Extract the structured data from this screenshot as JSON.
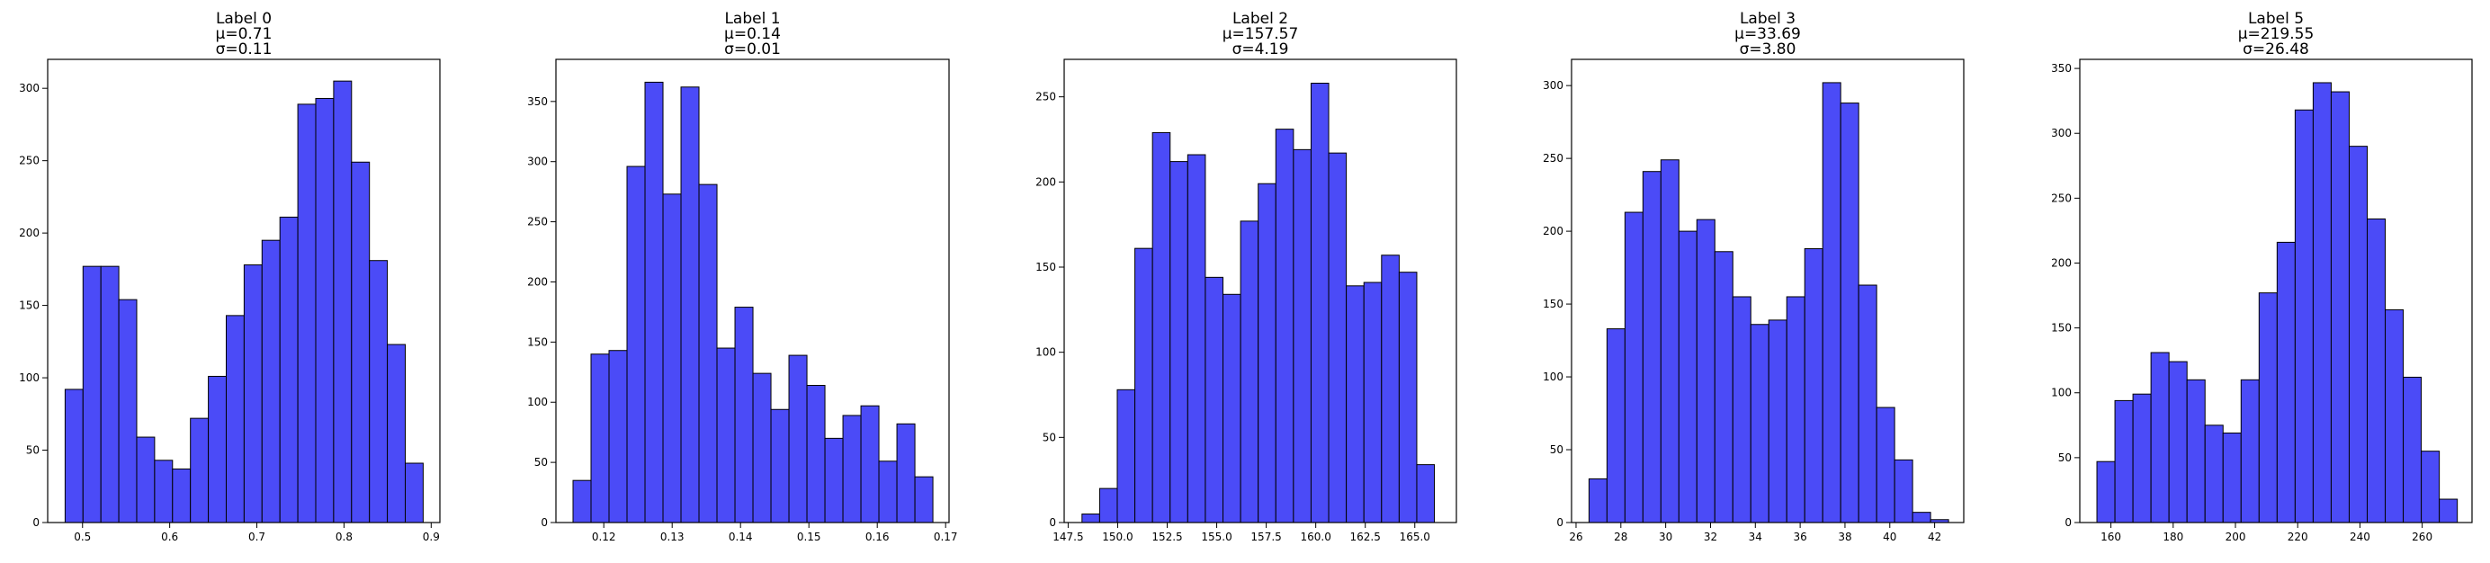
{
  "chart_data": [
    {
      "type": "bar",
      "title_lines": [
        "Label 0",
        "μ=0.71",
        "σ=0.11"
      ],
      "bar_color": "#4b4bf7",
      "bin_start": 0.48,
      "bin_width": 0.02054,
      "values": [
        92,
        177,
        177,
        154,
        59,
        43,
        37,
        72,
        101,
        143,
        178,
        195,
        211,
        289,
        293,
        305,
        249,
        181,
        123,
        41
      ],
      "xlim": [
        0.46,
        0.91
      ],
      "ylim": [
        0,
        320
      ],
      "xticks": [
        0.5,
        0.6,
        0.7,
        0.8,
        0.9
      ],
      "xtick_labels": [
        "0.5",
        "0.6",
        "0.7",
        "0.8",
        "0.9"
      ],
      "yticks": [
        0,
        50,
        100,
        150,
        200,
        250,
        300
      ],
      "ytick_labels": [
        "0",
        "50",
        "100",
        "150",
        "200",
        "250",
        "300"
      ]
    },
    {
      "type": "bar",
      "title_lines": [
        "Label 1",
        "μ=0.14",
        "σ=0.01"
      ],
      "bar_color": "#4b4bf7",
      "bin_start": 0.1155,
      "bin_width": 0.002632,
      "values": [
        35,
        140,
        143,
        296,
        366,
        273,
        362,
        281,
        145,
        179,
        124,
        94,
        139,
        114,
        70,
        89,
        97,
        51,
        82,
        38
      ],
      "xlim": [
        0.113,
        0.1705
      ],
      "ylim": [
        0,
        385
      ],
      "xticks": [
        0.12,
        0.13,
        0.14,
        0.15,
        0.16,
        0.17
      ],
      "xtick_labels": [
        "0.12",
        "0.13",
        "0.14",
        "0.15",
        "0.16",
        "0.17"
      ],
      "yticks": [
        0,
        50,
        100,
        150,
        200,
        250,
        300,
        350
      ],
      "ytick_labels": [
        "0",
        "50",
        "100",
        "150",
        "200",
        "250",
        "300",
        "350"
      ]
    },
    {
      "type": "bar",
      "title_lines": [
        "Label 2",
        "μ=157.57",
        "σ=4.19"
      ],
      "bar_color": "#4b4bf7",
      "bin_start": 148.2,
      "bin_width": 0.8895,
      "values": [
        5,
        20,
        78,
        161,
        229,
        212,
        216,
        144,
        134,
        177,
        199,
        231,
        219,
        258,
        217,
        139,
        141,
        157,
        147,
        34
      ],
      "xlim": [
        147.3,
        167.1
      ],
      "ylim": [
        0,
        272
      ],
      "xticks": [
        147.5,
        150.0,
        152.5,
        155.0,
        157.5,
        160.0,
        162.5,
        165.0
      ],
      "xtick_labels": [
        "147.5",
        "150.0",
        "152.5",
        "155.0",
        "157.5",
        "160.0",
        "162.5",
        "165.0"
      ],
      "yticks": [
        0,
        50,
        100,
        150,
        200,
        250
      ],
      "ytick_labels": [
        "0",
        "50",
        "100",
        "150",
        "200",
        "250"
      ]
    },
    {
      "type": "bar",
      "title_lines": [
        "Label 3",
        "μ=33.69",
        "σ=3.80"
      ],
      "bar_color": "#4b4bf7",
      "bin_start": 26.58,
      "bin_width": 0.8021,
      "values": [
        30,
        133,
        213,
        241,
        249,
        200,
        208,
        186,
        155,
        136,
        139,
        155,
        188,
        302,
        288,
        163,
        79,
        43,
        7,
        2
      ],
      "xlim": [
        25.8,
        43.3
      ],
      "ylim": [
        0,
        318
      ],
      "xticks": [
        26,
        28,
        30,
        32,
        34,
        36,
        38,
        40,
        42
      ],
      "xtick_labels": [
        "26",
        "28",
        "30",
        "32",
        "34",
        "36",
        "38",
        "40",
        "42"
      ],
      "yticks": [
        0,
        50,
        100,
        150,
        200,
        250,
        300
      ],
      "ytick_labels": [
        "0",
        "50",
        "100",
        "150",
        "200",
        "250",
        "300"
      ]
    },
    {
      "type": "bar",
      "title_lines": [
        "Label 5",
        "μ=219.55",
        "σ=26.48"
      ],
      "bar_color": "#4b4bf7",
      "bin_start": 155.5,
      "bin_width": 5.789,
      "values": [
        47,
        94,
        99,
        131,
        124,
        110,
        75,
        69,
        110,
        177,
        216,
        318,
        339,
        332,
        290,
        234,
        164,
        112,
        55,
        18
      ],
      "xlim": [
        150.0,
        276.0
      ],
      "ylim": [
        0,
        357
      ],
      "xticks": [
        160,
        180,
        200,
        220,
        240,
        260
      ],
      "xtick_labels": [
        "160",
        "180",
        "200",
        "220",
        "240",
        "260"
      ],
      "yticks": [
        0,
        50,
        100,
        150,
        200,
        250,
        300,
        350
      ],
      "ytick_labels": [
        "0",
        "50",
        "100",
        "150",
        "200",
        "250",
        "300",
        "350"
      ]
    }
  ]
}
